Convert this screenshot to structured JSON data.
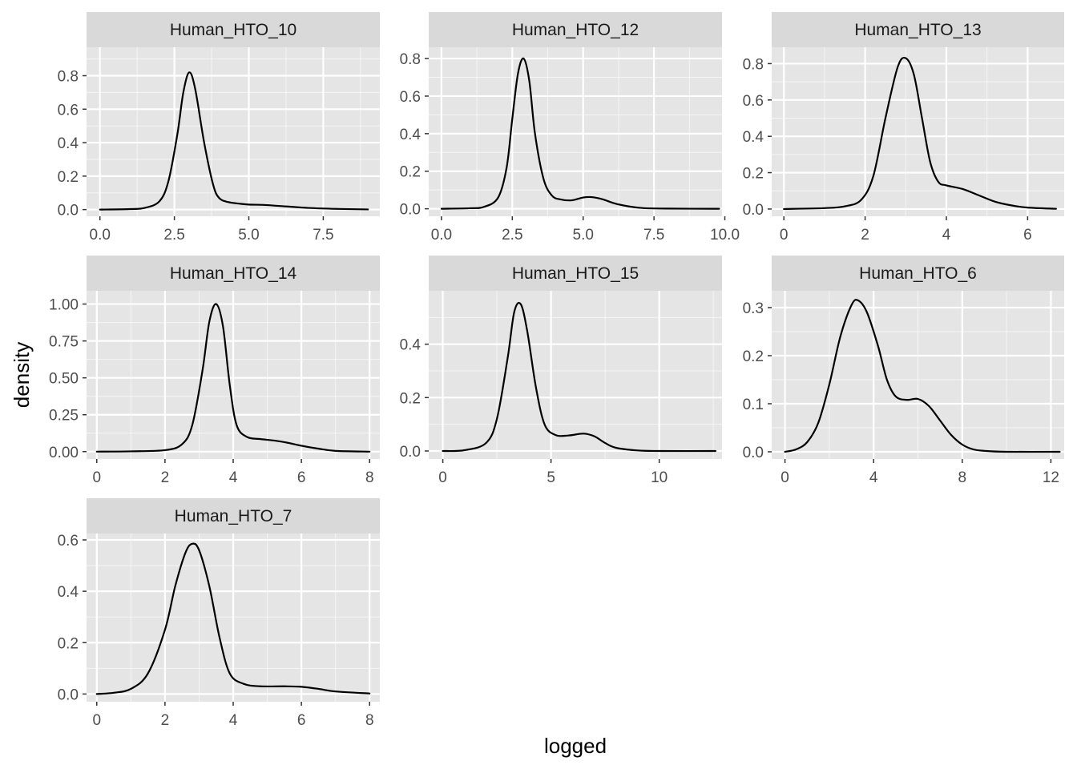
{
  "chart_data": {
    "type": "line",
    "subtype": "faceted density",
    "xlabel": "logged",
    "ylabel": "density",
    "colors": {
      "panel_bg": "#e5e5e5",
      "strip_bg": "#d9d9d9",
      "grid": "#ffffff",
      "line": "#000000",
      "tick_text": "#4d4d4d"
    },
    "panels": [
      {
        "name": "Human_HTO_10",
        "xlim": [
          -0.45,
          9.4
        ],
        "ylim": [
          -0.04,
          0.97
        ],
        "xticks": [
          0,
          2.5,
          5,
          7.5
        ],
        "xtick_labels": [
          "0.0",
          "2.5",
          "5.0",
          "7.5"
        ],
        "yticks": [
          0,
          0.2,
          0.4,
          0.6,
          0.8
        ],
        "ytick_labels": [
          "0.0",
          "0.2",
          "0.4",
          "0.6",
          "0.8"
        ],
        "x": [
          0,
          1,
          1.5,
          2,
          2.3,
          2.6,
          2.8,
          3,
          3.2,
          3.5,
          3.8,
          4,
          4.3,
          4.7,
          5,
          5.5,
          6,
          7,
          8,
          9
        ],
        "y": [
          0,
          0.003,
          0.01,
          0.05,
          0.17,
          0.45,
          0.7,
          0.82,
          0.72,
          0.4,
          0.15,
          0.07,
          0.045,
          0.035,
          0.03,
          0.028,
          0.022,
          0.01,
          0.004,
          0.001
        ]
      },
      {
        "name": "Human_HTO_12",
        "xlim": [
          -0.45,
          9.9
        ],
        "ylim": [
          -0.04,
          0.86
        ],
        "xticks": [
          0,
          2.5,
          5,
          7.5,
          10
        ],
        "xtick_labels": [
          "0.0",
          "2.5",
          "5.0",
          "7.5",
          "10.0"
        ],
        "yticks": [
          0,
          0.2,
          0.4,
          0.6,
          0.8
        ],
        "ytick_labels": [
          "0.0",
          "0.2",
          "0.4",
          "0.6",
          "0.8"
        ],
        "x": [
          0,
          1,
          1.5,
          2,
          2.3,
          2.5,
          2.7,
          2.9,
          3.1,
          3.3,
          3.6,
          3.9,
          4.2,
          4.6,
          5,
          5.3,
          5.7,
          6.2,
          7,
          8,
          9.8
        ],
        "y": [
          0,
          0.003,
          0.01,
          0.06,
          0.22,
          0.48,
          0.72,
          0.8,
          0.68,
          0.4,
          0.16,
          0.07,
          0.05,
          0.045,
          0.06,
          0.062,
          0.05,
          0.025,
          0.005,
          0.001,
          0
        ]
      },
      {
        "name": "Human_HTO_13",
        "xlim": [
          -0.3,
          6.9
        ],
        "ylim": [
          -0.04,
          0.89
        ],
        "xticks": [
          0,
          2,
          4,
          6
        ],
        "xtick_labels": [
          "0",
          "2",
          "4",
          "6"
        ],
        "yticks": [
          0,
          0.2,
          0.4,
          0.6,
          0.8
        ],
        "ytick_labels": [
          "0.0",
          "0.2",
          "0.4",
          "0.6",
          "0.8"
        ],
        "x": [
          0,
          1,
          1.5,
          1.9,
          2.2,
          2.5,
          2.8,
          3,
          3.2,
          3.4,
          3.6,
          3.8,
          4,
          4.4,
          4.8,
          5.2,
          5.6,
          6,
          6.7
        ],
        "y": [
          0,
          0.005,
          0.015,
          0.05,
          0.18,
          0.5,
          0.78,
          0.83,
          0.74,
          0.5,
          0.26,
          0.15,
          0.13,
          0.11,
          0.075,
          0.04,
          0.02,
          0.008,
          0.001
        ]
      },
      {
        "name": "Human_HTO_14",
        "xlim": [
          -0.3,
          8.3
        ],
        "ylim": [
          -0.05,
          1.09
        ],
        "xticks": [
          0,
          2,
          4,
          6,
          8
        ],
        "xtick_labels": [
          "0",
          "2",
          "4",
          "6",
          "8"
        ],
        "yticks": [
          0,
          0.25,
          0.5,
          0.75,
          1.0
        ],
        "ytick_labels": [
          "0.00",
          "0.25",
          "0.50",
          "0.75",
          "1.00"
        ],
        "x": [
          0,
          1,
          2,
          2.5,
          2.8,
          3.1,
          3.3,
          3.5,
          3.7,
          3.9,
          4.1,
          4.4,
          4.8,
          5.2,
          5.6,
          6,
          6.5,
          7,
          8
        ],
        "y": [
          0,
          0.002,
          0.01,
          0.05,
          0.18,
          0.55,
          0.88,
          1.0,
          0.85,
          0.45,
          0.18,
          0.1,
          0.085,
          0.075,
          0.06,
          0.04,
          0.02,
          0.005,
          0
        ]
      },
      {
        "name": "Human_HTO_15",
        "xlim": [
          -0.65,
          12.9
        ],
        "ylim": [
          -0.03,
          0.6
        ],
        "xticks": [
          0,
          5,
          10
        ],
        "xtick_labels": [
          "0",
          "5",
          "10"
        ],
        "yticks": [
          0,
          0.2,
          0.4
        ],
        "ytick_labels": [
          "0.0",
          "0.2",
          "0.4"
        ],
        "x": [
          0,
          1,
          2,
          2.5,
          3,
          3.3,
          3.6,
          3.9,
          4.3,
          4.7,
          5.2,
          5.8,
          6.5,
          7,
          7.5,
          8,
          9,
          10,
          12.6
        ],
        "y": [
          0,
          0.003,
          0.03,
          0.12,
          0.35,
          0.52,
          0.55,
          0.45,
          0.24,
          0.1,
          0.06,
          0.058,
          0.065,
          0.055,
          0.03,
          0.012,
          0.002,
          0,
          0
        ]
      },
      {
        "name": "Human_HTO_6",
        "xlim": [
          -0.6,
          12.6
        ],
        "ylim": [
          -0.015,
          0.335
        ],
        "xticks": [
          0,
          4,
          8,
          12
        ],
        "xtick_labels": [
          "0",
          "4",
          "8",
          "12"
        ],
        "yticks": [
          0,
          0.1,
          0.2,
          0.3
        ],
        "ytick_labels": [
          "0.0",
          "0.1",
          "0.2",
          "0.3"
        ],
        "x": [
          0,
          0.5,
          1,
          1.5,
          2,
          2.5,
          3,
          3.3,
          3.7,
          4.2,
          4.6,
          5,
          5.5,
          6,
          6.5,
          7,
          7.5,
          8,
          8.5,
          9,
          10,
          12.4
        ],
        "y": [
          0,
          0.005,
          0.02,
          0.06,
          0.14,
          0.24,
          0.305,
          0.315,
          0.29,
          0.22,
          0.15,
          0.115,
          0.108,
          0.11,
          0.095,
          0.065,
          0.035,
          0.015,
          0.005,
          0.002,
          0,
          0
        ]
      },
      {
        "name": "Human_HTO_7",
        "xlim": [
          -0.3,
          8.3
        ],
        "ylim": [
          -0.03,
          0.625
        ],
        "xticks": [
          0,
          2,
          4,
          6,
          8
        ],
        "xtick_labels": [
          "0",
          "2",
          "4",
          "6",
          "8"
        ],
        "yticks": [
          0,
          0.2,
          0.4,
          0.6
        ],
        "ytick_labels": [
          "0.0",
          "0.2",
          "0.4",
          "0.6"
        ],
        "x": [
          0,
          0.5,
          1,
          1.5,
          2,
          2.3,
          2.6,
          2.8,
          3,
          3.3,
          3.6,
          3.9,
          4.3,
          4.8,
          5.5,
          6,
          6.5,
          7,
          8
        ],
        "y": [
          0,
          0.005,
          0.02,
          0.08,
          0.25,
          0.42,
          0.55,
          0.585,
          0.56,
          0.42,
          0.22,
          0.08,
          0.04,
          0.03,
          0.03,
          0.028,
          0.02,
          0.01,
          0.002
        ]
      }
    ]
  }
}
